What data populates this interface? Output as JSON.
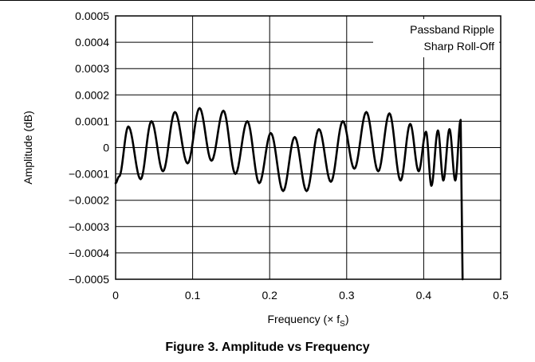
{
  "figure_caption": "Figure 3. Amplitude vs Frequency",
  "chart_data": {
    "type": "line",
    "ylabel": "Amplitude (dB)",
    "xlabel_main": "Frequency (× f",
    "xlabel_sub": "S",
    "xlabel_close": ")",
    "xlim": [
      0,
      0.5
    ],
    "ylim": [
      -0.0005,
      0.0005
    ],
    "x_ticks": [
      "0",
      "0.1",
      "0.2",
      "0.3",
      "0.4",
      "0.5"
    ],
    "y_ticks": [
      "0.0005",
      "0.0004",
      "0.0003",
      "0.0002",
      "0.0001",
      "0",
      "−0.0001",
      "−0.0002",
      "−0.0003",
      "−0.0004",
      "−0.0005"
    ],
    "x_tick_values": [
      0,
      0.1,
      0.2,
      0.3,
      0.4,
      0.5
    ],
    "y_tick_values": [
      0.0005,
      0.0004,
      0.0003,
      0.0002,
      0.0001,
      0,
      -0.0001,
      -0.0002,
      -0.0003,
      -0.0004,
      -0.0005
    ],
    "grid": true,
    "legend_lines": [
      "Passband Ripple",
      "Sharp Roll-Off"
    ],
    "legend_position": "top-right",
    "line_color": "#000000",
    "series": [
      {
        "x": [
          0.0,
          0.0045,
          0.0165,
          0.0325,
          0.0465,
          0.0615,
          0.077,
          0.0935,
          0.109,
          0.1245,
          0.14,
          0.1555,
          0.171,
          0.1865,
          0.2015,
          0.2175,
          0.2325,
          0.248,
          0.264,
          0.2795,
          0.295,
          0.31,
          0.3255,
          0.341,
          0.3555,
          0.37,
          0.3825,
          0.3935,
          0.403,
          0.41,
          0.4185,
          0.4255,
          0.4335,
          0.441,
          0.448,
          0.4505
        ],
        "y": [
          -0.000135,
          -0.00011,
          8e-05,
          -0.00012,
          0.0001,
          -9e-05,
          0.000135,
          -6e-05,
          0.00015,
          -5e-05,
          0.00014,
          -0.0001,
          0.0001,
          -0.000135,
          5.5e-05,
          -0.000165,
          4e-05,
          -0.000165,
          7e-05,
          -0.00013,
          0.0001,
          -8e-05,
          0.000135,
          -9e-05,
          0.00013,
          -0.000125,
          9e-05,
          -9e-05,
          6e-05,
          -0.000145,
          6.5e-05,
          -0.000125,
          7e-05,
          -0.000125,
          0.000105,
          -0.0005
        ]
      }
    ]
  }
}
